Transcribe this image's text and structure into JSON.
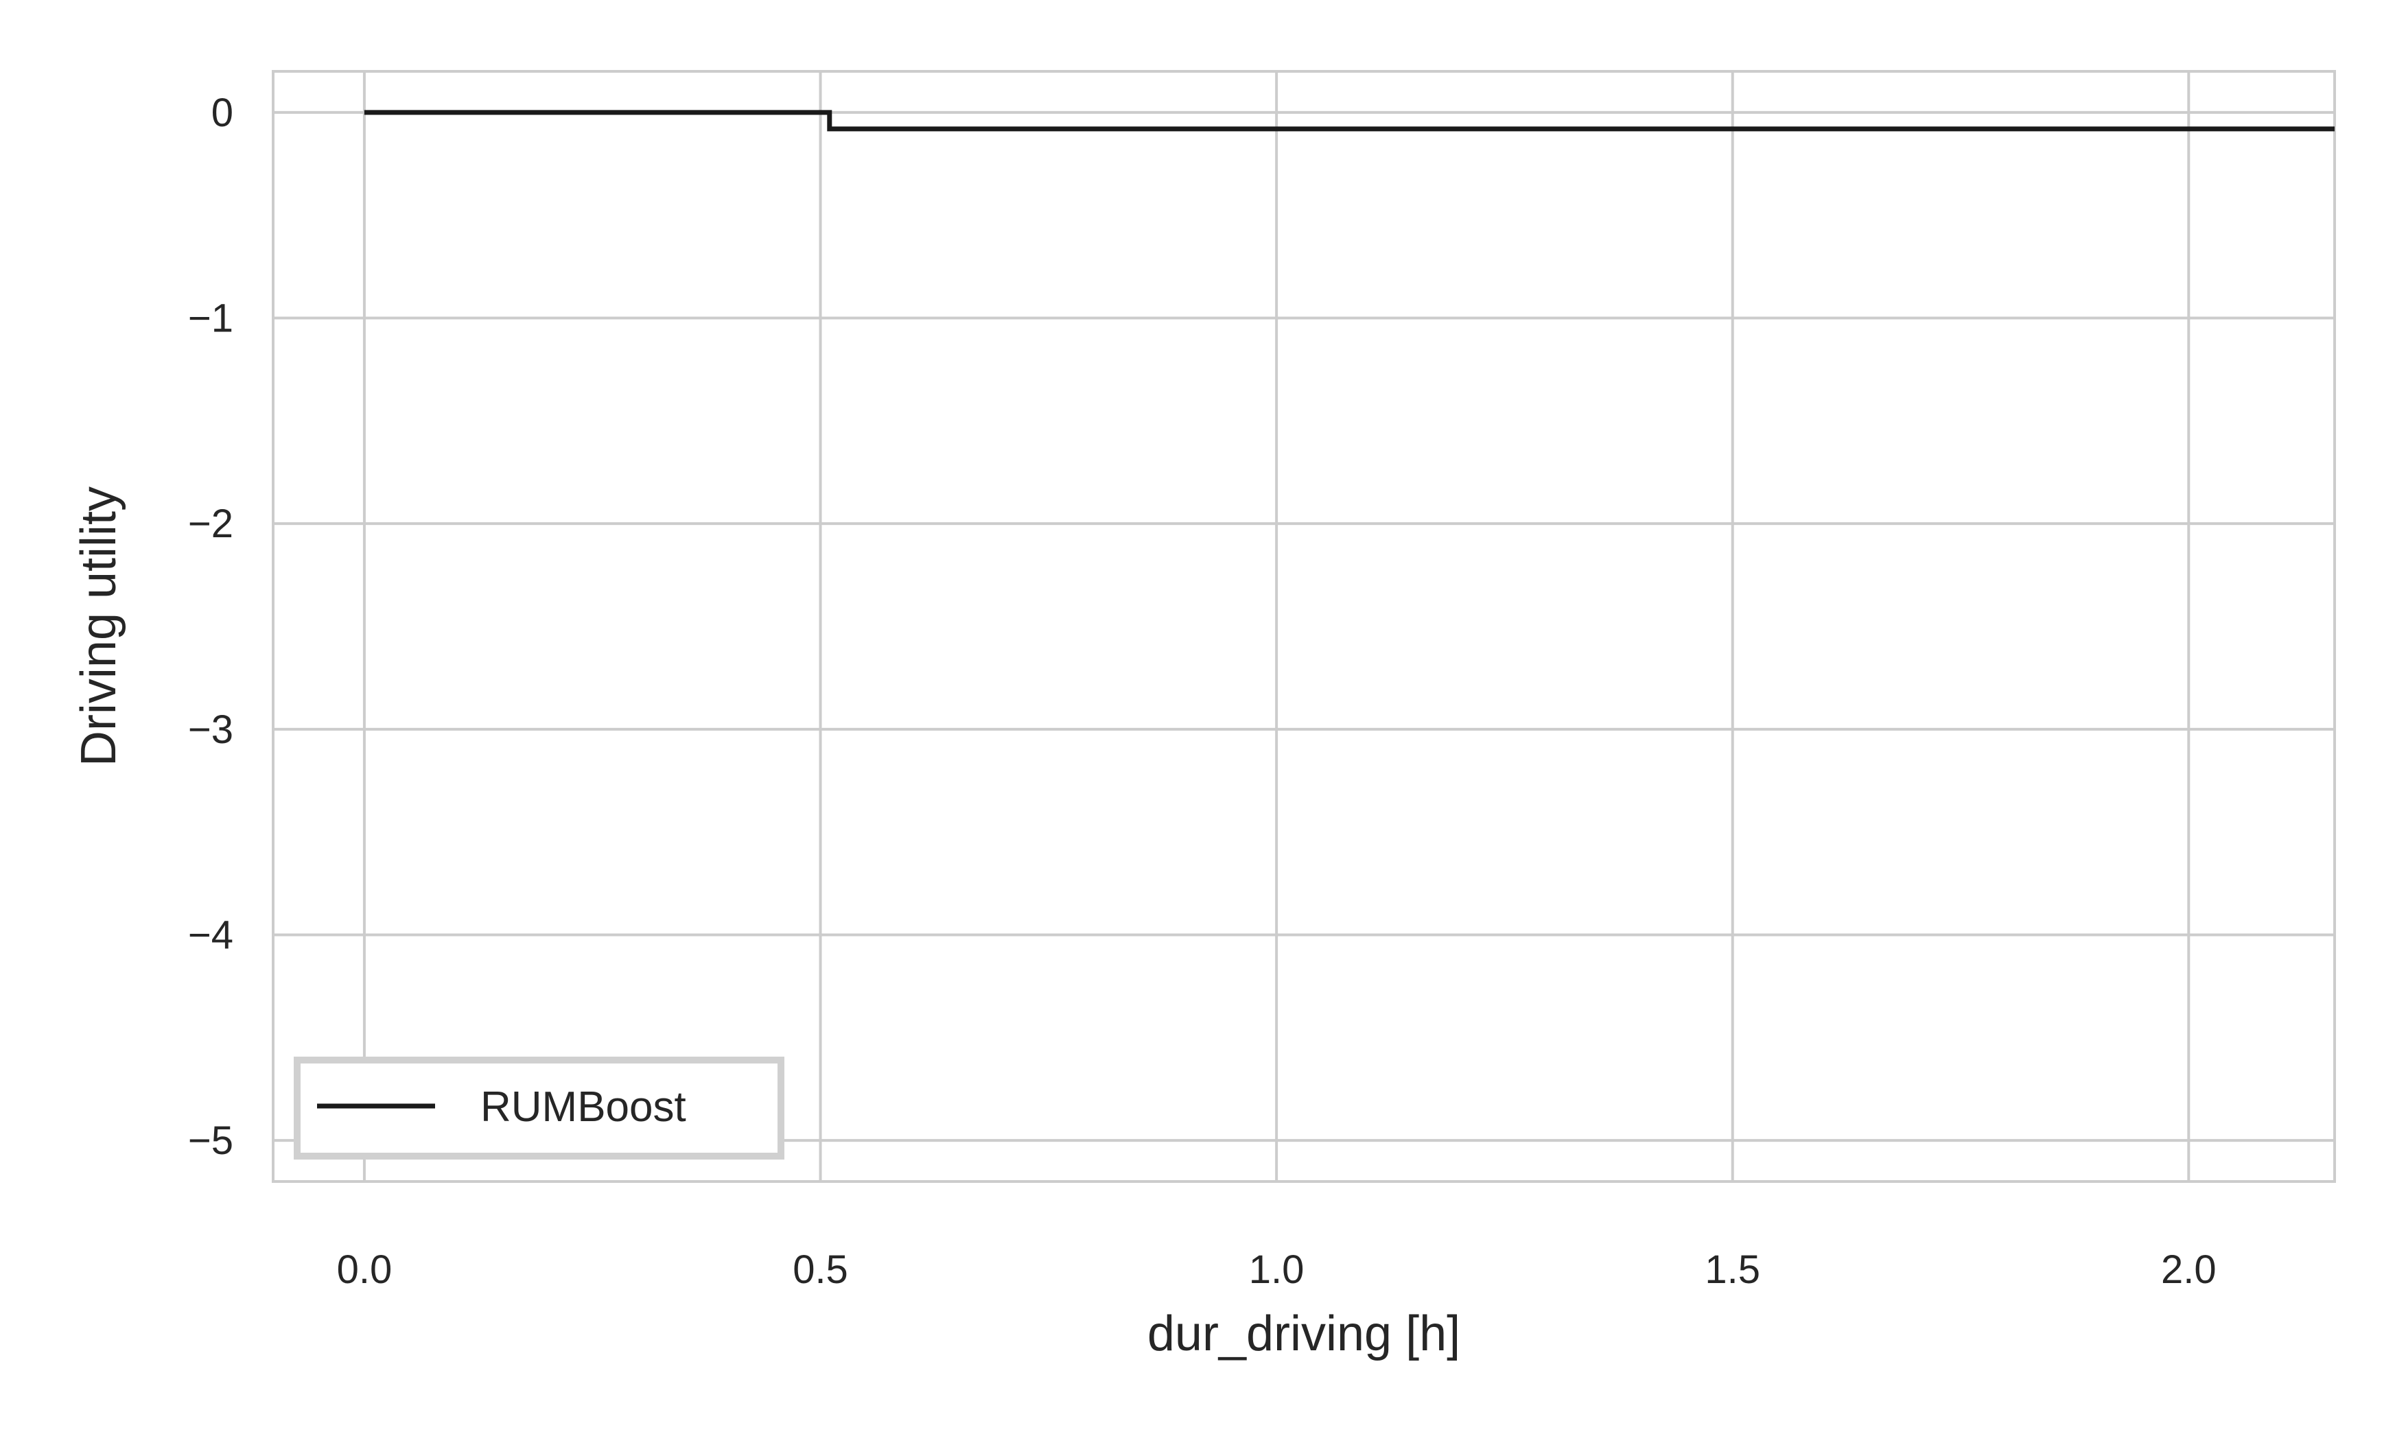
{
  "chart_data": {
    "type": "line",
    "title": "",
    "xlabel": "dur_driving [h]",
    "ylabel": "Driving utility",
    "xlim": [
      -0.1,
      2.16
    ],
    "ylim": [
      -5.2,
      0.2
    ],
    "x_ticks": [
      0.0,
      0.5,
      1.0,
      1.5,
      2.0
    ],
    "x_tick_labels": [
      "0.0",
      "0.5",
      "1.0",
      "1.5",
      "2.0"
    ],
    "y_ticks": [
      0,
      -1,
      -2,
      -3,
      -4,
      -5
    ],
    "y_tick_labels": [
      "0",
      "−1",
      "−2",
      "−3",
      "−4",
      "−5"
    ],
    "grid": true,
    "legend_position": "lower-left",
    "series": [
      {
        "name": "RUMBoost",
        "color": "#1a1a1a",
        "x": [
          0.0,
          0.51,
          0.51,
          2.16
        ],
        "y": [
          0.0,
          0.0,
          -0.08,
          -0.08
        ]
      }
    ]
  },
  "colors": {
    "grid": "#cccccc",
    "axes_border": "#cccccc",
    "text": "#262626"
  }
}
